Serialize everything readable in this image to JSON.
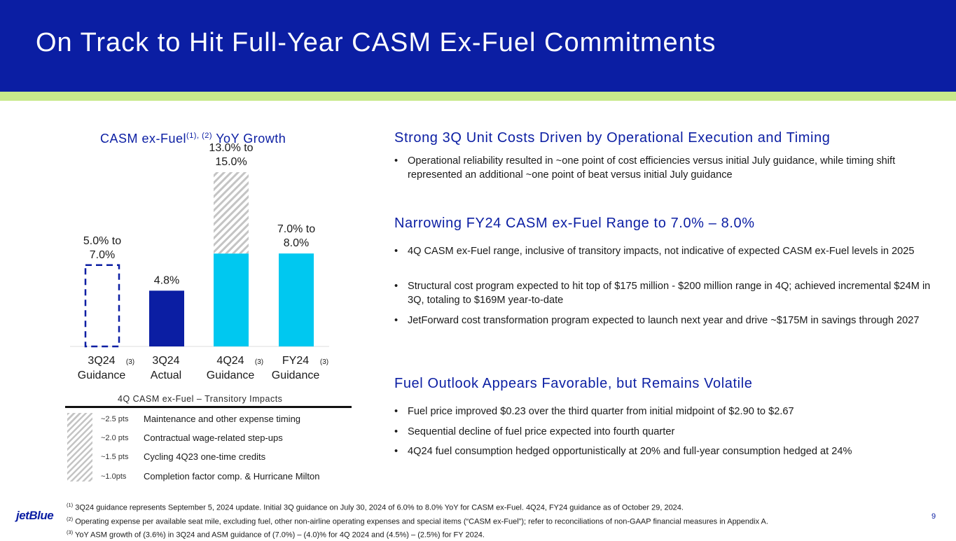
{
  "header": {
    "title": "On Track to Hit Full-Year CASM Ex-Fuel Commitments"
  },
  "colors": {
    "brand_blue": "#0b1ea3",
    "accent_cyan": "#00c8f0",
    "stripe_green": "#c8e98b",
    "hatch_gray": "#c4c4c4"
  },
  "chart": {
    "title_prefix": "CASM ex-Fuel",
    "title_sup": "(1), (2)",
    "title_suffix": " YoY Growth"
  },
  "chart_data": {
    "type": "bar",
    "title": "CASM ex-Fuel(1), (2) YoY Growth",
    "unit": "%",
    "ylim": [
      0,
      16
    ],
    "categories": [
      {
        "line1": "3Q24",
        "line2": "Guidance",
        "footnote": "(3)"
      },
      {
        "line1": "3Q24",
        "line2": "Actual",
        "footnote": ""
      },
      {
        "line1": "4Q24",
        "line2": "Guidance",
        "footnote": "(3)"
      },
      {
        "line1": "FY24",
        "line2": "Guidance",
        "footnote": "(3)"
      }
    ],
    "bars": [
      {
        "style": "dashed-outline",
        "low": 5.0,
        "high": 7.0,
        "label_line1": "5.0% to",
        "label_line2": "7.0%"
      },
      {
        "style": "solid-blue",
        "value": 4.8,
        "label_line1": "4.8%",
        "label_line2": ""
      },
      {
        "style": "cyan-with-hatch",
        "low": 13.0,
        "high": 15.0,
        "base_value": 8.0,
        "label_line1": "13.0% to",
        "label_line2": "15.0%"
      },
      {
        "style": "solid-cyan",
        "low": 7.0,
        "high": 8.0,
        "value": 8.0,
        "label_line1": "7.0% to",
        "label_line2": "8.0%"
      }
    ]
  },
  "impacts": {
    "title": "4Q CASM ex-Fuel – Transitory Impacts",
    "rows": [
      {
        "pts": "~2.5 pts",
        "text": "Maintenance and other expense timing"
      },
      {
        "pts": "~2.0 pts",
        "text": "Contractual wage-related step-ups"
      },
      {
        "pts": "~1.5 pts",
        "text": "Cycling 4Q23 one-time credits"
      },
      {
        "pts": "~1.0pts",
        "text": "Completion factor comp. & Hurricane Milton"
      }
    ]
  },
  "sections": [
    {
      "heading": "Strong 3Q Unit Costs Driven by Operational Execution and Timing",
      "bullets": [
        "Operational reliability resulted in ~one point of cost efficiencies versus initial July guidance, while timing shift represented an additional ~one point of beat versus initial July guidance"
      ]
    },
    {
      "heading": "Narrowing FY24 CASM ex-Fuel Range to 7.0% – 8.0%",
      "bullets": [
        "4Q CASM ex-Fuel range, inclusive of transitory impacts, not indicative of expected CASM ex-Fuel levels in 2025",
        "Structural cost program expected to hit top of $175 million - $200 million range in 4Q; achieved incremental $24M in 3Q, totaling to $169M year-to-date",
        "JetForward cost transformation program expected to launch next year and drive ~$175M in savings through 2027"
      ]
    },
    {
      "heading": "Fuel Outlook Appears Favorable, but Remains Volatile",
      "bullets": [
        "Fuel price improved $0.23 over the third quarter from initial midpoint of $2.90 to $2.67",
        "Sequential decline of fuel price expected into fourth quarter",
        "4Q24 fuel consumption hedged opportunistically at 20% and full-year consumption hedged at 24%"
      ]
    }
  ],
  "bullet_char": "•",
  "footnotes": [
    {
      "mark": "(1)",
      "text": " 3Q24 guidance represents September 5, 2024 update. Initial 3Q guidance on July 30, 2024 of 6.0% to 8.0% YoY for CASM ex-Fuel. 4Q24, FY24 guidance as of October 29, 2024."
    },
    {
      "mark": "(2)",
      "text": " Operating expense per available seat mile, excluding fuel, other non-airline operating expenses and special items (“CASM ex-Fuel”); refer to reconciliations of non-GAAP financial measures in Appendix A."
    },
    {
      "mark": "(3)",
      "text": " YoY ASM growth of (3.6%) in 3Q24 and ASM guidance of (7.0%) – (4.0)% for 4Q 2024 and (4.5%) – (2.5%) for FY 2024."
    }
  ],
  "logo": "jetBlue",
  "page_number": "9"
}
